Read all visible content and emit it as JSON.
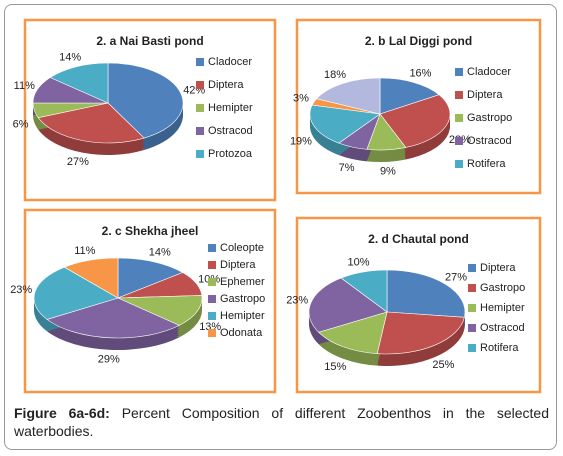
{
  "chart_data": [
    {
      "type": "pie",
      "title": "2. a  Nai Basti pond",
      "categories": [
        "Cladocer",
        "Diptera",
        "Hemipter",
        "Ostracod",
        "Protozoa"
      ],
      "values": [
        42,
        27,
        6,
        11,
        14
      ],
      "value_labels": [
        "42%",
        "27%",
        "6%",
        "11%",
        "14%"
      ],
      "colors": [
        "#4f81bd",
        "#c0504d",
        "#9bbb59",
        "#8064a2",
        "#4bacc6"
      ]
    },
    {
      "type": "pie",
      "title": "2. b  Lal Diggi pond",
      "categories": [
        "Cladocer",
        "Diptera",
        "Gastropo",
        "Ostracod",
        "Rotifera",
        null,
        null
      ],
      "values": [
        16,
        28,
        9,
        7,
        19,
        3,
        18
      ],
      "value_labels": [
        "16%",
        "28%",
        "9%",
        "7%",
        "19%",
        "3%",
        "18%"
      ],
      "colors": [
        "#4f81bd",
        "#c0504d",
        "#9bbb59",
        "#8064a2",
        "#4bacc6",
        "#f79646",
        "#b3b9de"
      ]
    },
    {
      "type": "pie",
      "title": "2. c  Shekha jheel",
      "categories": [
        "Coleopte",
        "Diptera",
        "Ephemer",
        "Gastropo",
        "Hemipter",
        "Odonata"
      ],
      "values": [
        14,
        10,
        13,
        29,
        23,
        11
      ],
      "value_labels": [
        "14%",
        "10%",
        "13%",
        "29%",
        "23%",
        "11%"
      ],
      "colors": [
        "#4f81bd",
        "#c0504d",
        "#9bbb59",
        "#8064a2",
        "#4bacc6",
        "#f79646"
      ]
    },
    {
      "type": "pie",
      "title": "2. d  Chautal pond",
      "categories": [
        "Diptera",
        "Gastropo",
        "Hemipter",
        "Ostracod",
        "Rotifera"
      ],
      "values": [
        27,
        25,
        15,
        23,
        10
      ],
      "value_labels": [
        "27%",
        "25%",
        "15%",
        "23%",
        "10%"
      ],
      "colors": [
        "#4f81bd",
        "#c0504d",
        "#9bbb59",
        "#8064a2",
        "#4bacc6"
      ]
    }
  ],
  "caption": {
    "label": "Figure 6a-6d:",
    "text": "Percent Composition of different Zoobenthos in the selected waterbodies."
  }
}
